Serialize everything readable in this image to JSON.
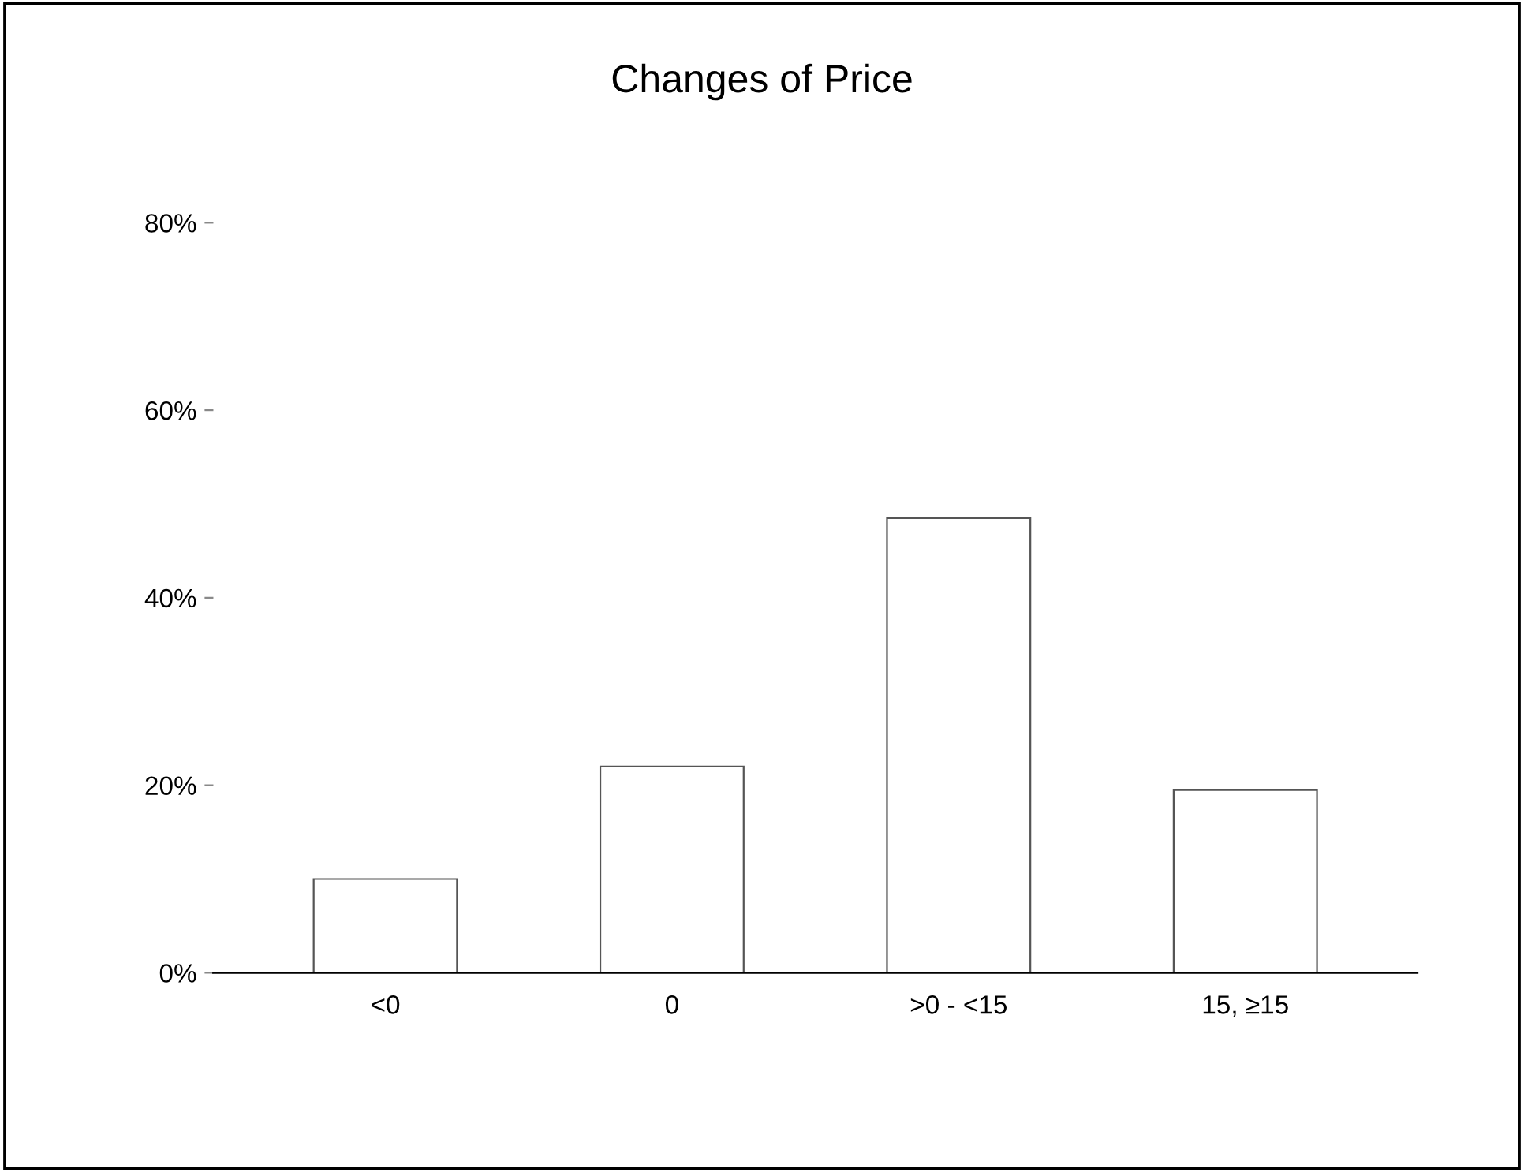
{
  "chart_data": {
    "type": "bar",
    "title": "Changes of Price",
    "categories": [
      "<0",
      "0",
      ">0 - <15",
      "15, ≥15"
    ],
    "values": [
      10,
      22,
      48.5,
      19.5
    ],
    "color": "#ffffff",
    "ylim": [
      0,
      80
    ],
    "yticks": [
      {
        "value": 0,
        "label": "0%"
      },
      {
        "value": 20,
        "label": "20%"
      },
      {
        "value": 40,
        "label": "40%"
      },
      {
        "value": 60,
        "label": "60%"
      },
      {
        "value": 80,
        "label": "80%"
      }
    ],
    "grid": false,
    "legend": false
  }
}
